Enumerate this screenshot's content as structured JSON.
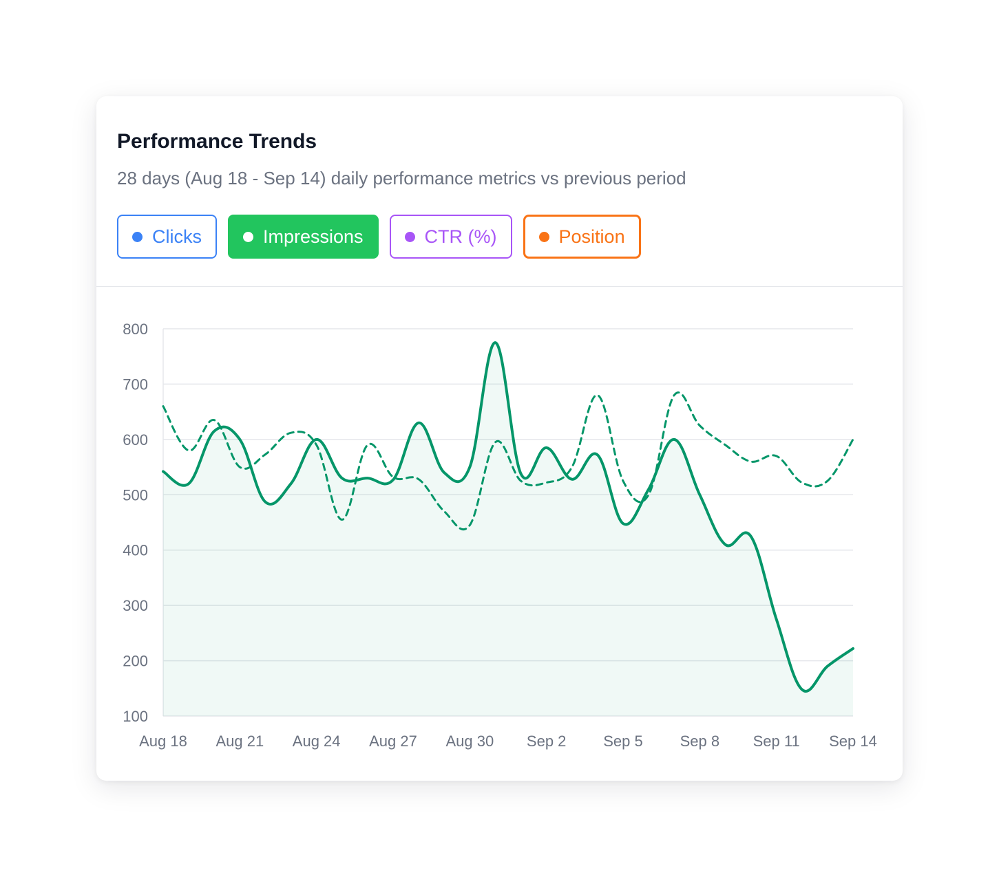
{
  "card": {
    "title": "Performance Trends",
    "subtitle": "28 days (Aug 18 - Sep 14) daily performance metrics vs previous period"
  },
  "toggles": [
    {
      "label": "Clicks",
      "color": "#3b82f6",
      "active": false
    },
    {
      "label": "Impressions",
      "color": "#22c55e",
      "active": true
    },
    {
      "label": "CTR (%)",
      "color": "#a855f7",
      "active": false
    },
    {
      "label": "Position",
      "color": "#f97316",
      "active": false,
      "emphasized": true
    }
  ],
  "chart_data": {
    "type": "line",
    "xlabel": "",
    "ylabel": "",
    "ylim": [
      100,
      800
    ],
    "yticks": [
      100,
      200,
      300,
      400,
      500,
      600,
      700,
      800
    ],
    "x": [
      "Aug 18",
      "Aug 19",
      "Aug 20",
      "Aug 21",
      "Aug 22",
      "Aug 23",
      "Aug 24",
      "Aug 25",
      "Aug 26",
      "Aug 27",
      "Aug 28",
      "Aug 29",
      "Aug 30",
      "Aug 31",
      "Sep 1",
      "Sep 2",
      "Sep 3",
      "Sep 4",
      "Sep 5",
      "Sep 6",
      "Sep 7",
      "Sep 8",
      "Sep 9",
      "Sep 10",
      "Sep 11",
      "Sep 12",
      "Sep 13",
      "Sep 14"
    ],
    "xtick_labels": [
      "Aug 18",
      "Aug 21",
      "Aug 24",
      "Aug 27",
      "Aug 30",
      "Sep 2",
      "Sep 5",
      "Sep 8",
      "Sep 11",
      "Sep 14"
    ],
    "grid": true,
    "line_color": "#059669",
    "series": [
      {
        "style": "solid",
        "fill": true,
        "values": [
          542,
          520,
          615,
          600,
          487,
          520,
          600,
          530,
          530,
          527,
          630,
          540,
          550,
          775,
          538,
          585,
          528,
          572,
          448,
          510,
          600,
          500,
          410,
          425,
          275,
          148,
          190,
          222
        ]
      },
      {
        "style": "dashed",
        "fill": false,
        "values": [
          660,
          580,
          635,
          550,
          573,
          612,
          590,
          455,
          590,
          532,
          528,
          470,
          445,
          595,
          525,
          522,
          550,
          680,
          525,
          500,
          680,
          625,
          590,
          560,
          570,
          522,
          525,
          600
        ]
      }
    ]
  }
}
